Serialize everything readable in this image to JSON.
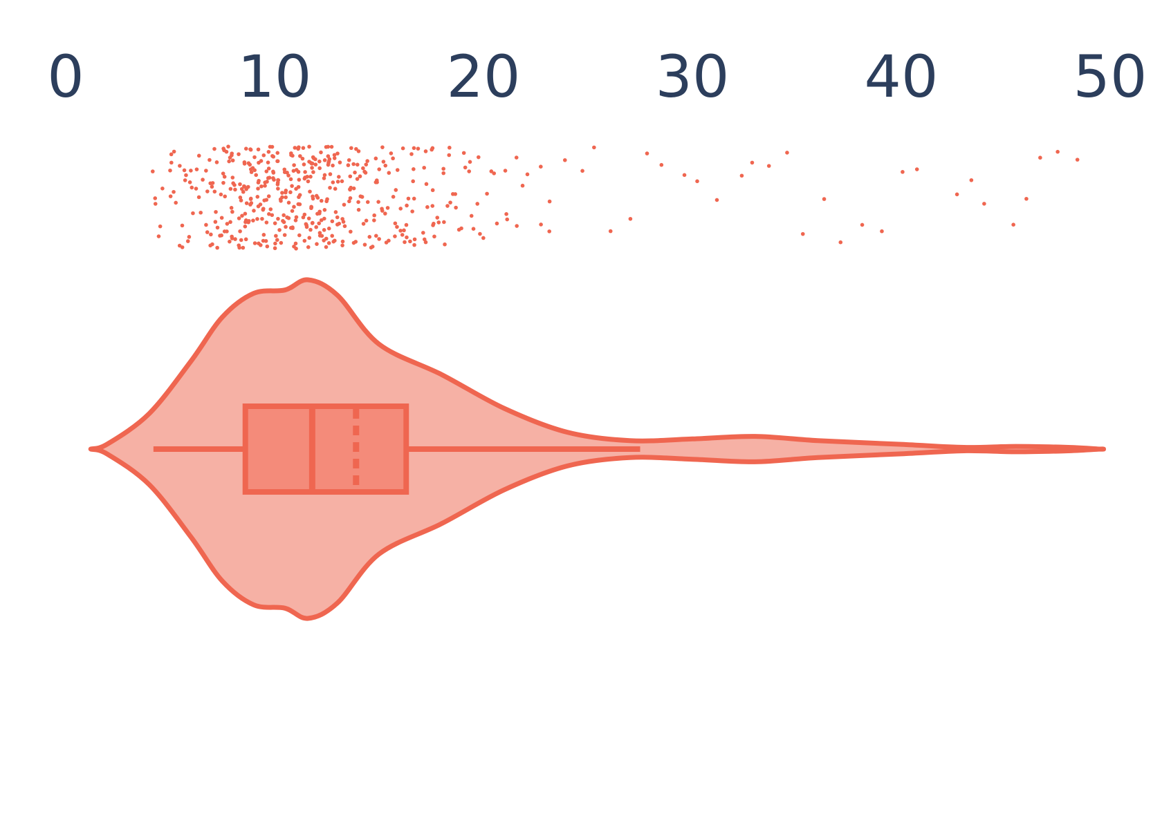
{
  "chart_data": {
    "type": "violin",
    "orientation": "horizontal",
    "title": "",
    "xlabel": "",
    "ylabel": "",
    "xlim": [
      0,
      50
    ],
    "x_ticks": [
      0,
      10,
      20,
      30,
      40,
      50
    ],
    "x_tick_labels": [
      "0",
      "10",
      "20",
      "30",
      "40",
      "50"
    ],
    "axis_position": "top",
    "grid": false,
    "colors": {
      "accent": "#EF6650",
      "violin_fill": "#F6B1A5",
      "box_fill": "#F48B7A",
      "tick_text": "#2C3E5C"
    },
    "box": {
      "whisker_low": 4.2,
      "q1": 8.6,
      "median": 11.8,
      "mean": 13.9,
      "q3": 16.3,
      "whisker_high": 27.5
    },
    "violin_extent": [
      1.2,
      49.5
    ],
    "density_profile": [
      {
        "x": 1.2,
        "d": 0.0
      },
      {
        "x": 2.0,
        "d": 0.03
      },
      {
        "x": 4.0,
        "d": 0.21
      },
      {
        "x": 6.0,
        "d": 0.52
      },
      {
        "x": 7.5,
        "d": 0.78
      },
      {
        "x": 9.0,
        "d": 0.92
      },
      {
        "x": 10.5,
        "d": 0.94
      },
      {
        "x": 11.6,
        "d": 1.0
      },
      {
        "x": 13.0,
        "d": 0.91
      },
      {
        "x": 15.0,
        "d": 0.62
      },
      {
        "x": 18.0,
        "d": 0.44
      },
      {
        "x": 21.0,
        "d": 0.24
      },
      {
        "x": 24.0,
        "d": 0.1
      },
      {
        "x": 27.0,
        "d": 0.05
      },
      {
        "x": 30.0,
        "d": 0.06
      },
      {
        "x": 33.0,
        "d": 0.075
      },
      {
        "x": 36.0,
        "d": 0.05
      },
      {
        "x": 40.0,
        "d": 0.028
      },
      {
        "x": 43.0,
        "d": 0.01
      },
      {
        "x": 45.5,
        "d": 0.016
      },
      {
        "x": 48.0,
        "d": 0.01
      },
      {
        "x": 49.5,
        "d": 0.0
      }
    ],
    "strip_points_sample": [
      4.3,
      4.6,
      5.0,
      5.3,
      5.7,
      6.0,
      6.4,
      6.8,
      7.1,
      7.4,
      7.7,
      7.9,
      8.1,
      8.3,
      8.5,
      8.7,
      8.9,
      9.1,
      9.3,
      9.5,
      9.7,
      9.9,
      10.1,
      10.3,
      10.5,
      10.7,
      10.9,
      11.1,
      11.3,
      11.5,
      11.7,
      11.9,
      12.1,
      12.3,
      12.5,
      12.7,
      12.9,
      13.2,
      13.5,
      13.8,
      14.1,
      14.4,
      14.7,
      15.0,
      15.3,
      15.6,
      15.9,
      16.2,
      16.5,
      16.8,
      17.1,
      17.4,
      17.7,
      18.0,
      18.4,
      18.8,
      19.2,
      19.6,
      20.0,
      20.5,
      21.0,
      21.5,
      22.0,
      22.6,
      23.2,
      23.9,
      24.6,
      25.3,
      26.2,
      27.0,
      27.8,
      28.6,
      29.5,
      30.4,
      31.3,
      32.2,
      33.0,
      33.8,
      34.6,
      35.4,
      36.3,
      37.2,
      38.1,
      39.0,
      39.9,
      40.7,
      42.5,
      43.2,
      43.9,
      45.3,
      46.0,
      46.8,
      47.6,
      48.3
    ]
  }
}
